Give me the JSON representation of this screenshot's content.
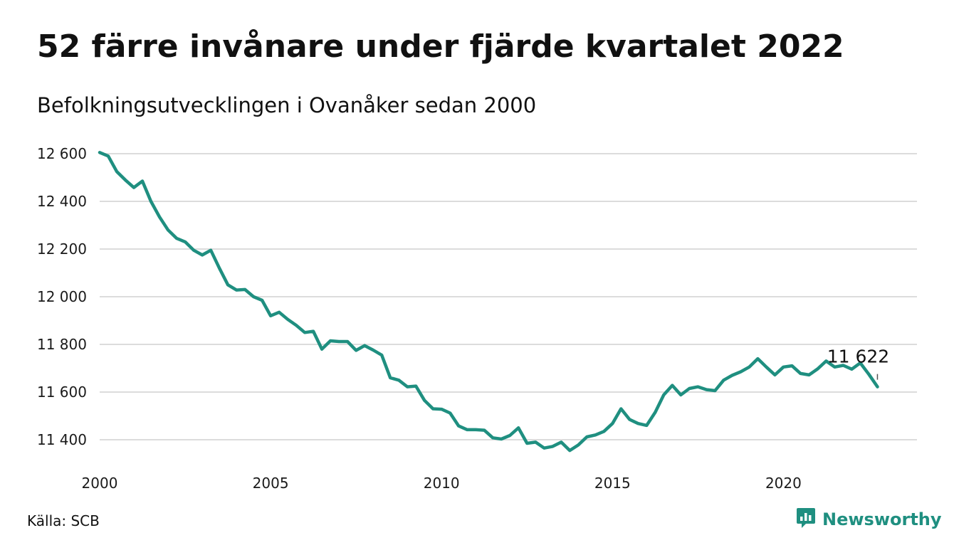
{
  "header": {
    "title": "52 färre invånare under fjärde kvartalet 2022",
    "subtitle": "Befolkningsutvecklingen i Ovanåker sedan 2000"
  },
  "footer": {
    "source": "Källa: SCB",
    "brand": "Newsworthy",
    "brand_icon": "chart-speech-bubble-icon",
    "brand_color": "#1f8f80"
  },
  "chart_data": {
    "type": "line",
    "title": "52 färre invånare under fjärde kvartalet 2022",
    "subtitle": "Befolkningsutvecklingen i Ovanåker sedan 2000",
    "line_color": "#1f8f80",
    "grid": true,
    "xlim": [
      2000,
      2023.3
    ],
    "ylim": [
      11300,
      12600
    ],
    "x_ticks": [
      2000,
      2005,
      2010,
      2015,
      2020
    ],
    "y_ticks": [
      11400,
      11600,
      11800,
      12000,
      12200,
      12400,
      12600
    ],
    "y_tick_labels": [
      "11 400",
      "11 600",
      "11 800",
      "12 000",
      "12 200",
      "12 400",
      "12 600"
    ],
    "end_label": "11 622",
    "series": [
      {
        "x": [
          2000.0,
          2000.25,
          2000.5,
          2000.75,
          2001.0,
          2001.25,
          2001.5,
          2001.75,
          2002.0,
          2002.25,
          2002.5,
          2002.75,
          2003.0,
          2003.25,
          2003.5,
          2003.75,
          2004.0,
          2004.25,
          2004.5,
          2004.75,
          2005.0,
          2005.25,
          2005.5,
          2005.75,
          2006.0,
          2006.25,
          2006.5,
          2006.75,
          2007.0,
          2007.25,
          2007.5,
          2007.75,
          2008.0,
          2008.25,
          2008.5,
          2008.75,
          2009.0,
          2009.25,
          2009.5,
          2009.75,
          2010.0,
          2010.25,
          2010.5,
          2010.75,
          2011.0,
          2011.25,
          2011.5,
          2011.75,
          2012.0,
          2012.25,
          2012.5,
          2012.75,
          2013.0,
          2013.25,
          2013.5,
          2013.75,
          2014.0,
          2014.25,
          2014.5,
          2014.75,
          2015.0,
          2015.25,
          2015.5,
          2015.75,
          2016.0,
          2016.25,
          2016.5,
          2016.75,
          2017.0,
          2017.25,
          2017.5,
          2017.75,
          2018.0,
          2018.25,
          2018.5,
          2018.75,
          2019.0,
          2019.25,
          2019.5,
          2019.75,
          2020.0,
          2020.25,
          2020.5,
          2020.75,
          2021.0,
          2021.25,
          2021.5,
          2021.75,
          2022.0,
          2022.25,
          2022.5,
          2022.75
        ],
        "values": [
          12605,
          12590,
          12525,
          12490,
          12458,
          12485,
          12400,
          12335,
          12280,
          12245,
          12230,
          12195,
          12175,
          12195,
          12120,
          12050,
          12028,
          12030,
          12000,
          11985,
          11920,
          11935,
          11905,
          11880,
          11850,
          11855,
          11780,
          11815,
          11812,
          11812,
          11775,
          11795,
          11776,
          11755,
          11660,
          11650,
          11622,
          11625,
          11565,
          11530,
          11528,
          11512,
          11458,
          11442,
          11442,
          11440,
          11408,
          11403,
          11418,
          11450,
          11385,
          11390,
          11365,
          11372,
          11390,
          11355,
          11378,
          11412,
          11420,
          11435,
          11468,
          11530,
          11485,
          11468,
          11460,
          11515,
          11588,
          11628,
          11588,
          11615,
          11622,
          11610,
          11606,
          11650,
          11670,
          11685,
          11705,
          11740,
          11705,
          11672,
          11705,
          11710,
          11678,
          11672,
          11697,
          11730,
          11705,
          11712,
          11696,
          11722,
          11674,
          11622
        ]
      }
    ]
  }
}
